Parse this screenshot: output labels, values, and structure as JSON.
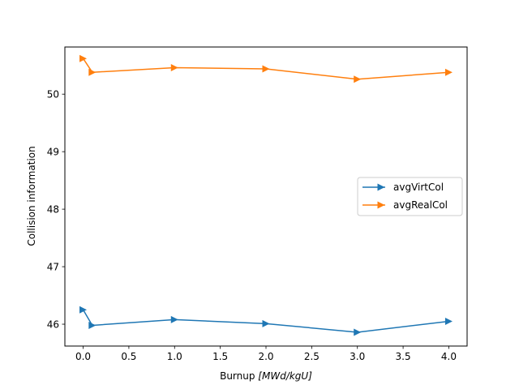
{
  "chart_data": {
    "type": "line",
    "title": "",
    "xlabel_main": "Burnup ",
    "xlabel_units": "[MWd/kgU]",
    "ylabel": "Collision information",
    "xlim": [
      -0.2,
      4.2
    ],
    "ylim": [
      45.62,
      50.82
    ],
    "xticks": [
      0.0,
      0.5,
      1.0,
      1.5,
      2.0,
      2.5,
      3.0,
      3.5,
      4.0
    ],
    "xtick_labels": [
      "0.0",
      "0.5",
      "1.0",
      "1.5",
      "2.0",
      "2.5",
      "3.0",
      "3.5",
      "4.0"
    ],
    "yticks": [
      46,
      47,
      48,
      49,
      50
    ],
    "ytick_labels": [
      "46",
      "47",
      "48",
      "49",
      "50"
    ],
    "grid": false,
    "legend_position": "center-right",
    "x": [
      0.0,
      0.1,
      1.0,
      2.0,
      3.0,
      4.0
    ],
    "series": [
      {
        "name": "avgVirtCol",
        "color": "#1f77b4",
        "marker": "right-triangle",
        "values": [
          46.25,
          45.98,
          46.08,
          46.01,
          45.86,
          46.05
        ]
      },
      {
        "name": "avgRealCol",
        "color": "#ff7f0e",
        "marker": "right-triangle",
        "values": [
          50.62,
          50.38,
          50.46,
          50.44,
          50.26,
          50.38
        ]
      }
    ]
  }
}
